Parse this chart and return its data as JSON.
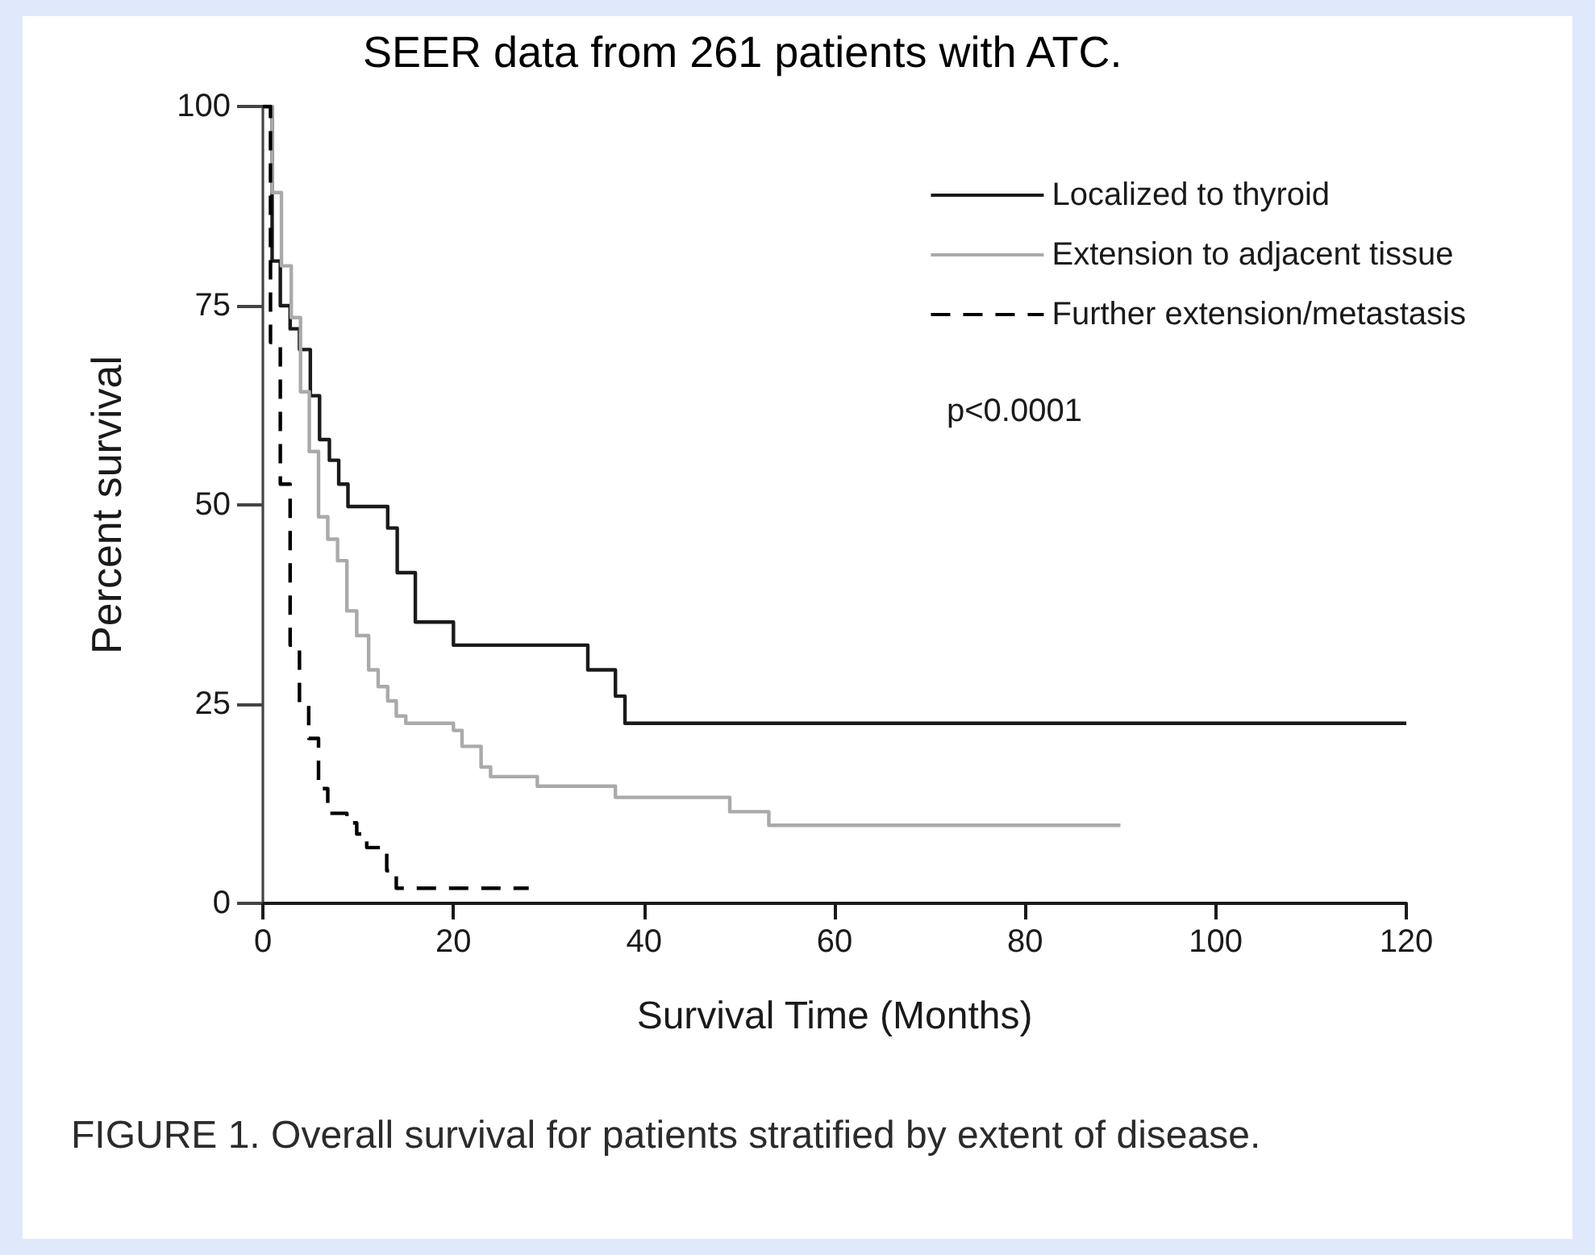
{
  "chart_data": {
    "type": "step",
    "title": "SEER data from 261 patients with ATC.",
    "xlabel": "Survival Time (Months)",
    "ylabel": "Percent survival",
    "annotations": [
      "p<0.0001",
      "FIGURE 1. Overall survival for patients stratified by extent of disease."
    ],
    "xlim": [
      0,
      120
    ],
    "xticks": [
      0,
      20,
      40,
      60,
      80,
      100,
      120
    ],
    "ylim": [
      0,
      100
    ],
    "yticks": [
      0,
      25,
      50,
      75,
      100
    ],
    "grid": false,
    "legend": "top right",
    "marker": "none",
    "series": [
      {
        "name": "Localized to thyroid",
        "color": "#1a1a1a",
        "line_style": "solid",
        "x": [
          0,
          0.97,
          1.83,
          2.86,
          3.84,
          4.98,
          5.95,
          6.98,
          7.96,
          8.93,
          13.1,
          14.1,
          16.0,
          20.0,
          28.9,
          34.1,
          37.0,
          38.0,
          60,
          67,
          70,
          81,
          101,
          120
        ],
        "values": [
          100,
          80.6,
          75.0,
          72.1,
          69.5,
          63.7,
          58.2,
          55.6,
          52.6,
          49.8,
          47.1,
          41.5,
          35.3,
          32.4,
          32.4,
          29.3,
          26.0,
          22.6,
          22.6,
          22.6,
          22.6,
          22.6,
          22.6,
          22.6
        ]
      },
      {
        "name": "Extension to adjacent tissue",
        "color": "#aaaaaa",
        "line_style": "solid",
        "x": [
          0,
          0.97,
          1.95,
          2.98,
          3.95,
          4.87,
          5.84,
          6.81,
          7.84,
          8.82,
          9.85,
          11.1,
          12.1,
          13.1,
          14.0,
          15.0,
          17.0,
          20.0,
          20.9,
          22.9,
          23.9,
          28.8,
          29.8,
          30.8,
          37.0,
          49.0,
          53.1,
          65.9,
          67.9,
          74.1,
          86.0,
          90.0
        ],
        "values": [
          100,
          89.2,
          80.0,
          73.5,
          64.2,
          56.7,
          48.5,
          45.7,
          43.0,
          36.7,
          33.6,
          29.3,
          27.2,
          25.4,
          23.5,
          22.6,
          22.6,
          21.7,
          19.7,
          17.1,
          15.9,
          14.7,
          14.7,
          14.7,
          13.3,
          11.5,
          9.8,
          9.8,
          9.8,
          9.8,
          9.8,
          9.8
        ]
      },
      {
        "name": "Further extension/metastasis",
        "color": "#000000",
        "line_style": "dashed",
        "x": [
          0,
          0.8,
          1.83,
          2.86,
          3.84,
          4.81,
          5.84,
          6.81,
          8.82,
          9.85,
          10.9,
          13.0,
          14.0,
          19.0,
          27.9
        ],
        "values": [
          100,
          70.4,
          52.6,
          32.4,
          25.0,
          20.7,
          14.4,
          11.3,
          10.1,
          8.7,
          7.0,
          4.1,
          1.9,
          1.9,
          1.9
        ]
      }
    ]
  }
}
